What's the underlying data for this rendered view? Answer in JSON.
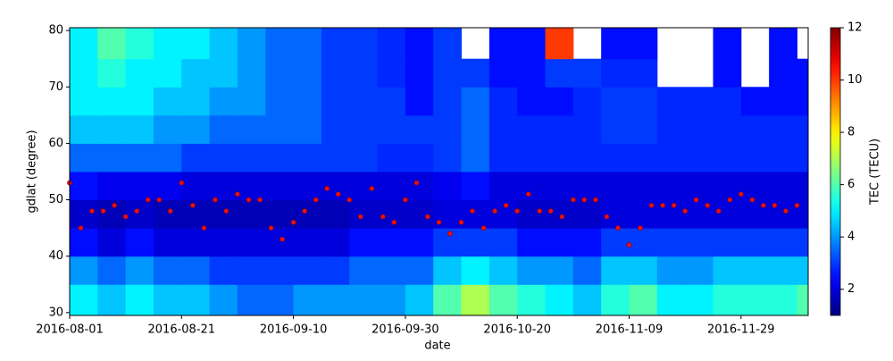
{
  "chart_data": {
    "type": "heatmap",
    "xlabel": "date",
    "ylabel": "gdlat (degree)",
    "colorbar_label": "TEC (TECU)",
    "colormap": "jet",
    "clim": [
      1,
      12
    ],
    "cticks": [
      2,
      4,
      6,
      8,
      10,
      12
    ],
    "xlim": [
      "2016-08-01",
      "2016-12-11"
    ],
    "xticks": [
      "2016-08-01",
      "2016-08-21",
      "2016-09-10",
      "2016-09-30",
      "2016-10-20",
      "2016-11-09",
      "2016-11-29"
    ],
    "ylim": [
      29.5,
      80.5
    ],
    "yticks": [
      30,
      40,
      50,
      60,
      70,
      80
    ],
    "x_edges": [
      "2016-08-01",
      "2016-08-06",
      "2016-08-11",
      "2016-08-16",
      "2016-08-21",
      "2016-08-26",
      "2016-08-31",
      "2016-09-05",
      "2016-09-10",
      "2016-09-15",
      "2016-09-20",
      "2016-09-25",
      "2016-09-30",
      "2016-10-05",
      "2016-10-10",
      "2016-10-15",
      "2016-10-20",
      "2016-10-25",
      "2016-10-30",
      "2016-11-04",
      "2016-11-09",
      "2016-11-14",
      "2016-11-19",
      "2016-11-24",
      "2016-11-29",
      "2016-12-04",
      "2016-12-09",
      "2016-12-11"
    ],
    "y_edges": [
      29.5,
      35,
      40,
      45,
      50,
      55,
      60,
      65,
      70,
      75,
      80.5
    ],
    "z": [
      [
        5,
        4.5,
        5,
        4.5,
        4.5,
        4,
        3.5,
        3.5,
        4,
        4,
        4,
        4,
        4.5,
        6,
        7,
        6,
        5.5,
        5,
        4.5,
        5.5,
        6,
        5,
        5,
        5.5,
        5.5,
        5.5,
        6
      ],
      [
        4,
        3.5,
        4,
        3.5,
        3.5,
        3,
        3,
        3,
        3,
        3,
        3.5,
        3.5,
        3.5,
        4.5,
        5,
        4.5,
        4,
        4,
        3.5,
        4.5,
        4.5,
        4,
        4,
        4.5,
        4.5,
        4.5,
        4.5
      ],
      [
        2.5,
        2,
        2.5,
        2,
        2,
        2,
        2,
        2,
        2,
        2,
        2.5,
        2.5,
        2.5,
        3,
        3,
        3,
        2.5,
        2.5,
        2.5,
        3,
        3,
        3,
        3,
        3,
        3,
        3,
        3
      ],
      [
        1.8,
        1.6,
        1.8,
        1.6,
        1.6,
        1.6,
        1.6,
        1.6,
        1.6,
        1.6,
        1.8,
        1.8,
        1.8,
        2,
        2,
        2,
        1.8,
        1.8,
        1.8,
        2,
        2,
        2,
        2,
        2,
        2,
        2,
        2
      ],
      [
        2.5,
        2.2,
        2.2,
        2.2,
        2,
        2,
        2,
        2,
        2,
        2,
        2,
        2,
        2,
        2.2,
        2.5,
        2,
        2,
        2,
        2,
        2,
        2,
        2,
        2,
        2,
        2,
        2,
        2
      ],
      [
        3.5,
        3.5,
        3.5,
        3.5,
        3,
        3,
        3,
        3,
        3,
        3,
        3,
        2.8,
        2.8,
        3,
        3.5,
        2.8,
        2.8,
        2.8,
        2.8,
        2.8,
        2.8,
        2.8,
        2.8,
        2.8,
        2.8,
        2.8,
        2.8
      ],
      [
        4.5,
        4.5,
        4.5,
        4,
        4,
        3.5,
        3.5,
        3.5,
        3.5,
        3,
        3,
        3,
        3,
        3,
        3.5,
        2.8,
        2.8,
        2.8,
        2.8,
        3,
        3,
        2.8,
        2.8,
        2.8,
        2.8,
        2.8,
        2.8
      ],
      [
        5,
        5,
        5,
        4.5,
        4.5,
        4,
        4,
        3.5,
        3.5,
        3,
        3,
        3,
        2.5,
        3,
        3.5,
        2.8,
        2.5,
        2.5,
        2.8,
        3,
        3,
        2.8,
        2.8,
        2.8,
        2.5,
        2.5,
        2.5
      ],
      [
        5,
        5.5,
        5,
        5,
        4.5,
        4.5,
        4,
        3.5,
        3.5,
        3,
        3,
        2.8,
        2.5,
        3,
        3,
        2.5,
        2.5,
        3,
        3,
        2.8,
        2.8,
        null,
        null,
        2.5,
        null,
        2.5,
        2.5
      ],
      [
        5,
        6,
        5.5,
        5,
        5,
        4.5,
        4,
        3.5,
        3.5,
        3,
        3,
        2.8,
        2.5,
        3,
        null,
        2.5,
        2.5,
        10,
        null,
        2.5,
        2.5,
        null,
        null,
        2.5,
        null,
        2.5,
        null
      ]
    ],
    "points": {
      "color": "#e8101a",
      "x": [
        "2016-08-01",
        "2016-08-03",
        "2016-08-05",
        "2016-08-07",
        "2016-08-09",
        "2016-08-11",
        "2016-08-13",
        "2016-08-15",
        "2016-08-17",
        "2016-08-19",
        "2016-08-21",
        "2016-08-23",
        "2016-08-25",
        "2016-08-27",
        "2016-08-29",
        "2016-08-31",
        "2016-09-02",
        "2016-09-04",
        "2016-09-06",
        "2016-09-08",
        "2016-09-10",
        "2016-09-12",
        "2016-09-14",
        "2016-09-16",
        "2016-09-18",
        "2016-09-20",
        "2016-09-22",
        "2016-09-24",
        "2016-09-26",
        "2016-09-28",
        "2016-09-30",
        "2016-10-02",
        "2016-10-04",
        "2016-10-06",
        "2016-10-08",
        "2016-10-10",
        "2016-10-12",
        "2016-10-14",
        "2016-10-16",
        "2016-10-18",
        "2016-10-20",
        "2016-10-22",
        "2016-10-24",
        "2016-10-26",
        "2016-10-28",
        "2016-10-30",
        "2016-11-01",
        "2016-11-03",
        "2016-11-05",
        "2016-11-07",
        "2016-11-09",
        "2016-11-11",
        "2016-11-13",
        "2016-11-15",
        "2016-11-17",
        "2016-11-19",
        "2016-11-21",
        "2016-11-23",
        "2016-11-25",
        "2016-11-27",
        "2016-11-29",
        "2016-12-01",
        "2016-12-03",
        "2016-12-05",
        "2016-12-07",
        "2016-12-09"
      ],
      "values": [
        53,
        45,
        48,
        48,
        49,
        47,
        48,
        50,
        50,
        48,
        53,
        49,
        45,
        50,
        48,
        51,
        50,
        50,
        45,
        43,
        46,
        48,
        50,
        52,
        51,
        50,
        47,
        52,
        47,
        46,
        50,
        53,
        47,
        46,
        44,
        46,
        48,
        45,
        48,
        49,
        48,
        51,
        48,
        48,
        47,
        50,
        50,
        50,
        47,
        45,
        42,
        45,
        49,
        49,
        49,
        48,
        50,
        49,
        48,
        50,
        51,
        50,
        49,
        49,
        48,
        49
      ]
    }
  }
}
